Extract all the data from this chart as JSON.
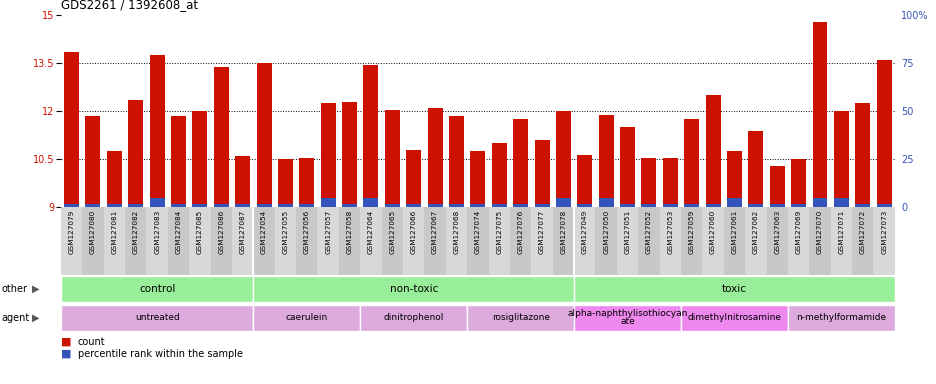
{
  "title": "GDS2261 / 1392608_at",
  "samples": [
    "GSM127079",
    "GSM127080",
    "GSM127081",
    "GSM127082",
    "GSM127083",
    "GSM127084",
    "GSM127085",
    "GSM127086",
    "GSM127087",
    "GSM127054",
    "GSM127055",
    "GSM127056",
    "GSM127057",
    "GSM127058",
    "GSM127064",
    "GSM127065",
    "GSM127066",
    "GSM127067",
    "GSM127068",
    "GSM127074",
    "GSM127075",
    "GSM127076",
    "GSM127077",
    "GSM127078",
    "GSM127049",
    "GSM127050",
    "GSM127051",
    "GSM127052",
    "GSM127053",
    "GSM127059",
    "GSM127060",
    "GSM127061",
    "GSM127062",
    "GSM127063",
    "GSM127069",
    "GSM127070",
    "GSM127071",
    "GSM127072",
    "GSM127073"
  ],
  "count_values": [
    13.85,
    11.85,
    10.75,
    12.35,
    13.75,
    11.85,
    12.0,
    13.4,
    10.6,
    13.5,
    10.5,
    10.55,
    12.25,
    12.3,
    13.45,
    12.05,
    10.8,
    12.1,
    11.85,
    10.75,
    11.0,
    11.75,
    11.1,
    12.0,
    10.65,
    11.9,
    11.5,
    10.55,
    10.55,
    11.75,
    12.5,
    10.75,
    11.4,
    10.3,
    10.5,
    14.8,
    12.0,
    12.25,
    13.6
  ],
  "percentile_values": [
    2,
    2,
    2,
    2,
    5,
    2,
    2,
    2,
    2,
    2,
    2,
    2,
    5,
    2,
    5,
    2,
    2,
    2,
    2,
    2,
    2,
    2,
    2,
    5,
    2,
    5,
    2,
    2,
    2,
    2,
    2,
    5,
    2,
    2,
    2,
    5,
    5,
    2,
    2
  ],
  "ylim_left": [
    9,
    15
  ],
  "ylim_right": [
    0,
    100
  ],
  "yticks_left": [
    9,
    10.5,
    12,
    13.5,
    15
  ],
  "yticks_left_labels": [
    "9",
    "10.5",
    "12",
    "13.5",
    "15"
  ],
  "yticks_right": [
    0,
    25,
    50,
    75,
    100
  ],
  "yticks_right_labels": [
    "0",
    "25",
    "50",
    "75",
    "100%"
  ],
  "bar_color": "#cc1100",
  "percentile_color": "#3355bb",
  "background_color": "#ffffff",
  "other_row": [
    {
      "label": "control",
      "start": 0,
      "end": 9,
      "color": "#99ee99"
    },
    {
      "label": "non-toxic",
      "start": 9,
      "end": 24,
      "color": "#99ee99"
    },
    {
      "label": "toxic",
      "start": 24,
      "end": 39,
      "color": "#99ee99"
    }
  ],
  "agent_row": [
    {
      "label": "untreated",
      "start": 0,
      "end": 9,
      "color": "#ddaadd"
    },
    {
      "label": "caerulein",
      "start": 9,
      "end": 14,
      "color": "#ddaadd"
    },
    {
      "label": "dinitrophenol",
      "start": 14,
      "end": 19,
      "color": "#ddaadd"
    },
    {
      "label": "rosiglitazone",
      "start": 19,
      "end": 24,
      "color": "#ddaadd"
    },
    {
      "label": "alpha-naphthylisothiocyan\nate",
      "start": 24,
      "end": 29,
      "color": "#ee88ee"
    },
    {
      "label": "dimethylnitrosamine",
      "start": 29,
      "end": 34,
      "color": "#ee88ee"
    },
    {
      "label": "n-methylformamide",
      "start": 34,
      "end": 39,
      "color": "#ddaadd"
    }
  ],
  "group_dividers": [
    9,
    24
  ],
  "agent_dividers": [
    9,
    14,
    19,
    24,
    29,
    34
  ]
}
